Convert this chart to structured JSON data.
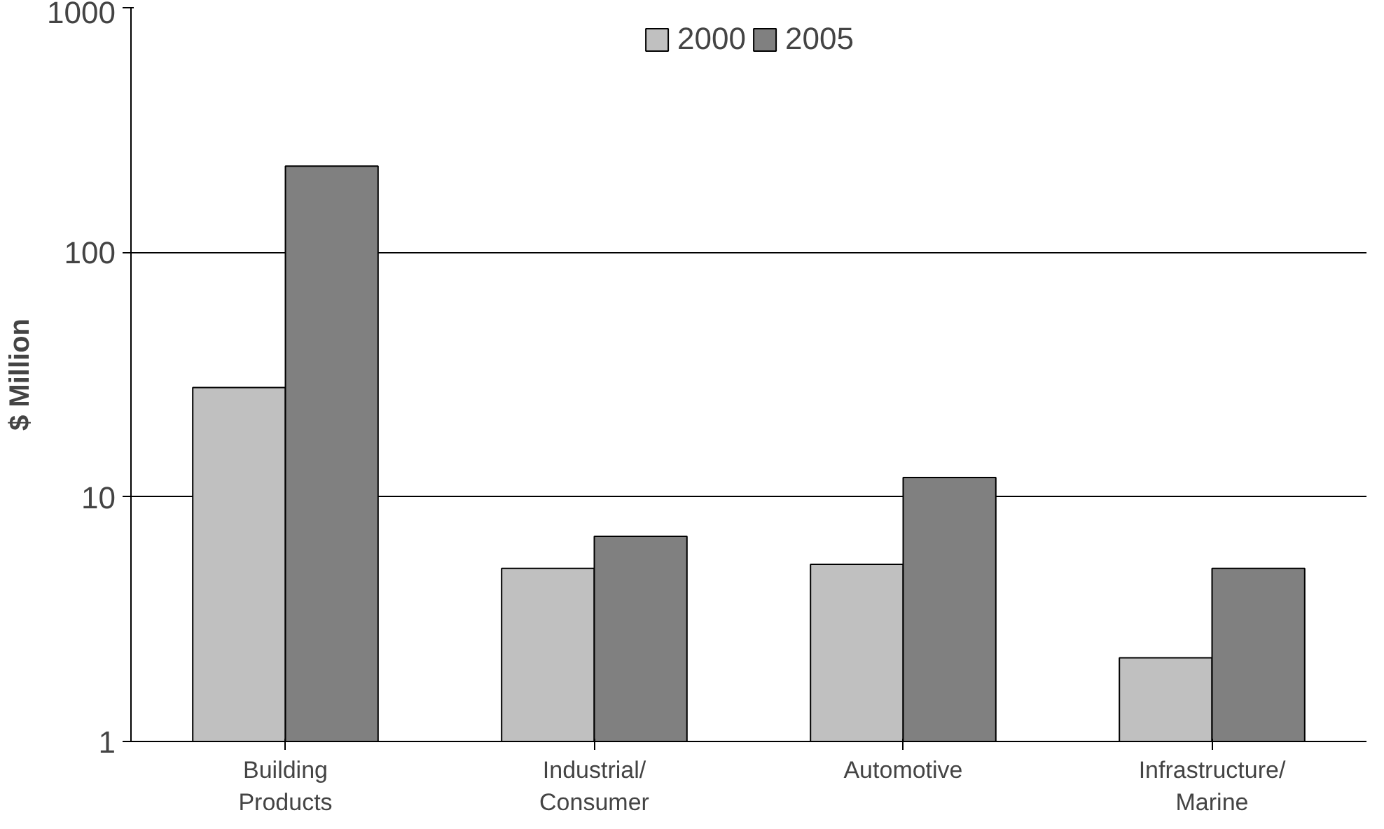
{
  "chart_data": {
    "type": "bar",
    "ylabel": "$ Million",
    "categories": [
      "Building Products",
      "Industrial/ Consumer",
      "Automotive",
      "Infrastructure/ Marine"
    ],
    "series": [
      {
        "name": "2000",
        "color": "#c0c0c0",
        "values": [
          28,
          5.1,
          5.3,
          2.2
        ]
      },
      {
        "name": "2005",
        "color": "#808080",
        "values": [
          225,
          6.9,
          12,
          5.1
        ]
      }
    ],
    "log": "y",
    "ylim": [
      1,
      1000
    ],
    "yticks": [
      1,
      10,
      100,
      1000
    ],
    "grid": "y",
    "legend": "top"
  }
}
